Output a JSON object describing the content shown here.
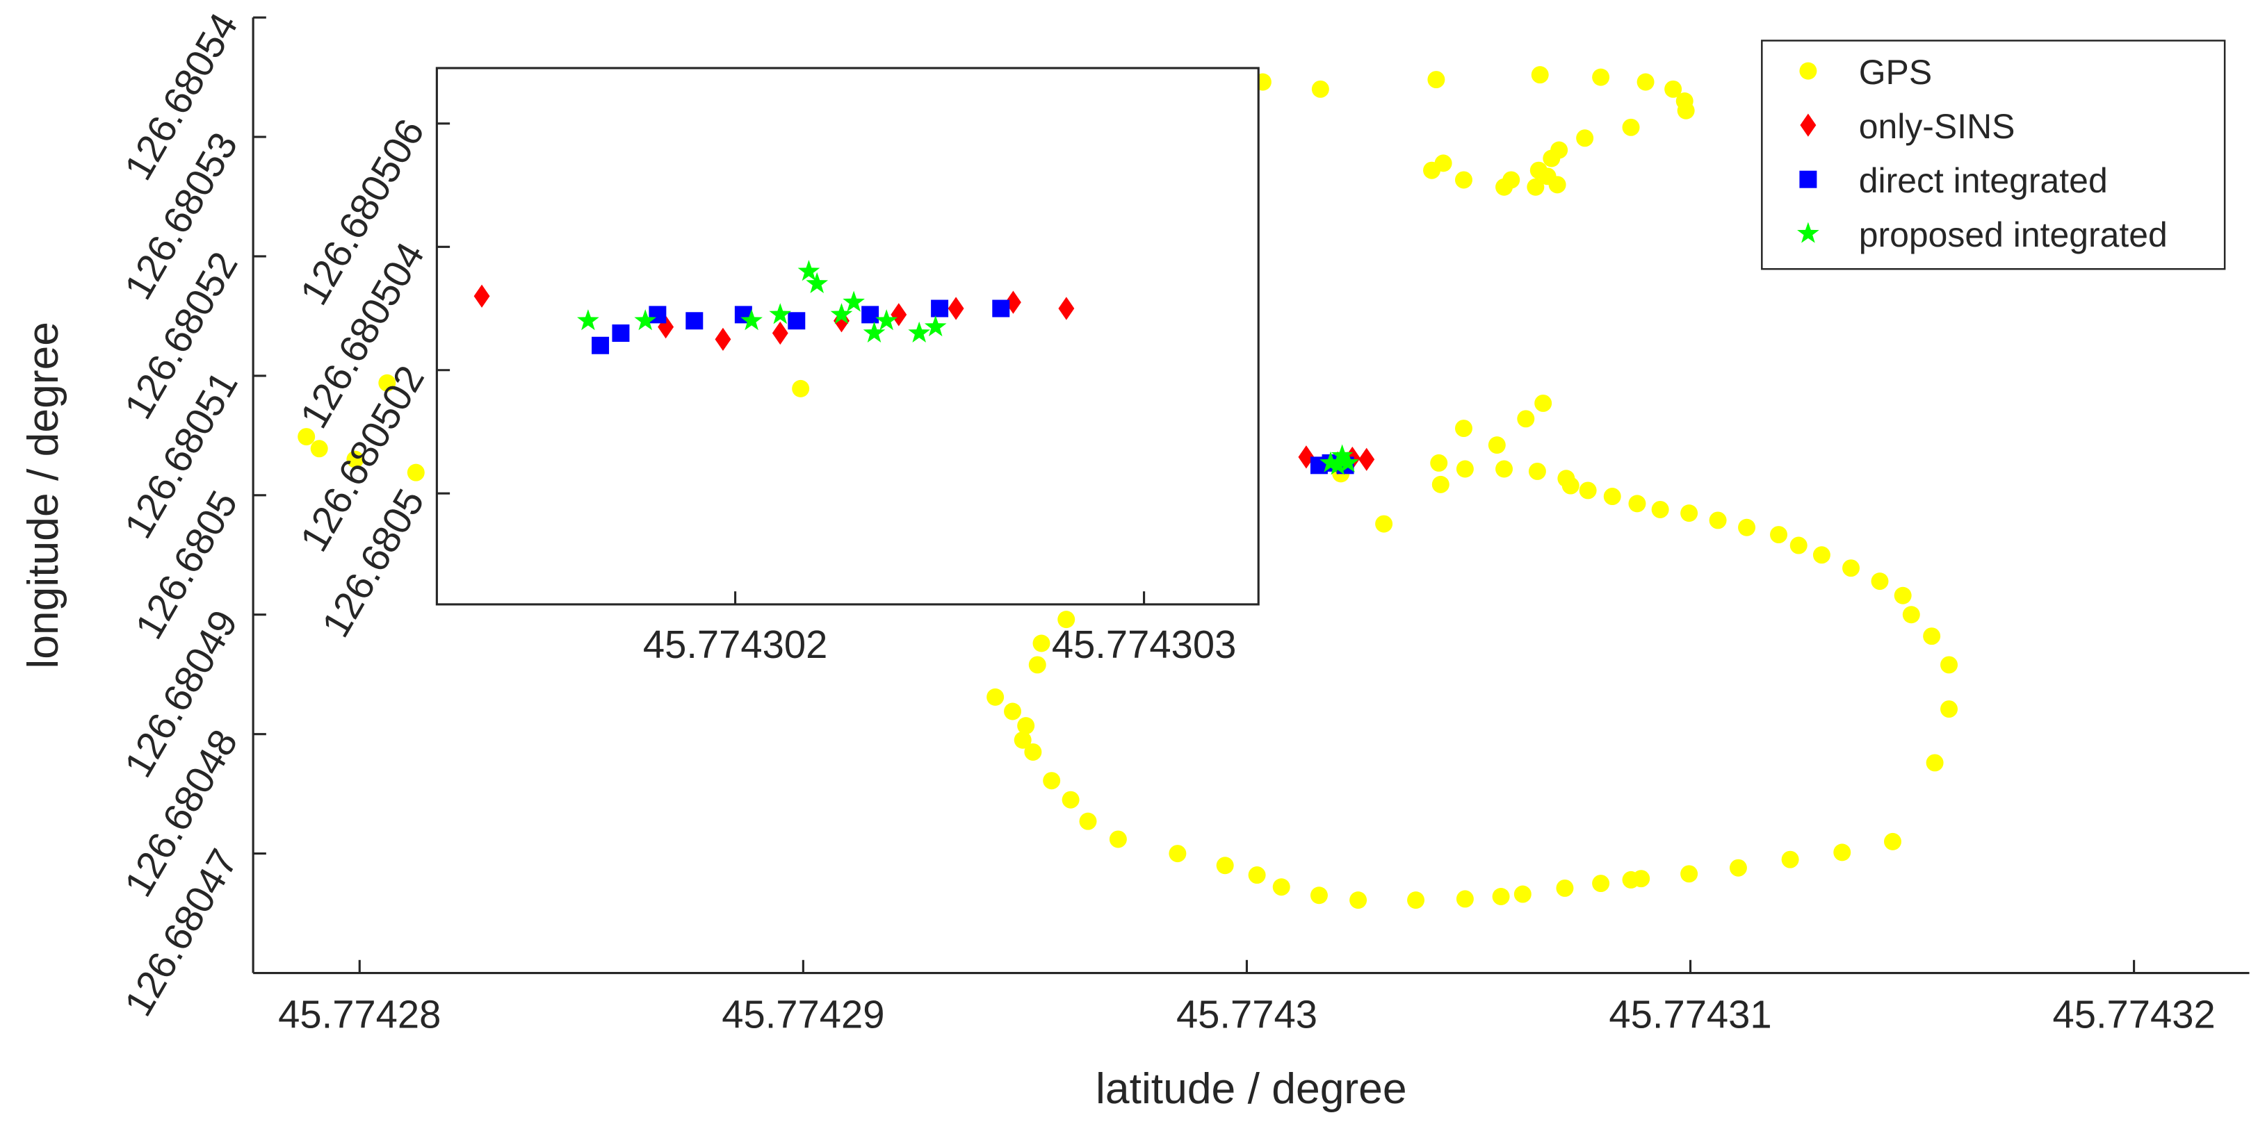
{
  "chart_data": [
    {
      "type": "scatter",
      "xlabel": "latitude / degree",
      "ylabel": "longitude / degree",
      "xlim": [
        45.7742776,
        45.7743226
      ],
      "ylim": [
        126.68046,
        126.68054
      ],
      "xticks": [
        45.77428,
        45.77429,
        45.7743,
        45.77431,
        45.77432
      ],
      "yticks": [
        126.68047,
        126.68048,
        126.68049,
        126.6805,
        126.68051,
        126.68052,
        126.68053,
        126.68054
      ],
      "legend": "upper right",
      "series": [
        {
          "name": "GPS",
          "color": "#ffff00",
          "marker": "circle",
          "x": [
            45.77430036,
            45.77430166,
            45.77430427,
            45.77430661,
            45.77430798,
            45.77430899,
            45.77430961,
            45.77430987,
            45.7743099,
            45.77430866,
            45.77430762,
            45.77430704,
            45.77430687,
            45.77430658,
            45.774307,
            45.77430651,
            45.77430596,
            45.7743058,
            45.77430489,
            45.77430443,
            45.77430417,
            45.77430678,
            45.7742788,
            45.77427909,
            45.7742799,
            45.77428127,
            45.77428062,
            45.77429593,
            45.77429537,
            45.77429528,
            45.77429433,
            45.77429472,
            45.77429502,
            45.77429495,
            45.77429518,
            45.7742956,
            45.77429603,
            45.77429642,
            45.7742971,
            45.77429844,
            45.77429951,
            45.77430023,
            45.77430078,
            45.77430163,
            45.77430251,
            45.77430381,
            45.77430492,
            45.77430573,
            45.77430622,
            45.77430717,
            45.77430798,
            45.77430866,
            45.77430889,
            45.77430997,
            45.77431108,
            45.77431225,
            45.77431342,
            45.77431456,
            45.77431551,
            45.77431583,
            45.77431583,
            45.77431544,
            45.77431498,
            45.77431479,
            45.77431427,
            45.77431362,
            45.77431296,
            45.77431244,
            45.77431199,
            45.77431127,
            45.77431062,
            45.77430997,
            45.77430932,
            45.7743088,
            45.77430824,
            45.77430769,
            45.7743073,
            45.7743072,
            45.77430655,
            45.7743058,
            45.77430492,
            45.77430433,
            45.77430437,
            45.77430489,
            45.77430564,
            45.77430629,
            45.77430668,
            45.77430309,
            45.77430212
          ],
          "values": [
            126.6805346,
            126.680534,
            126.6805348,
            126.6805352,
            126.680535,
            126.6805346,
            126.680534,
            126.680533,
            126.6805322,
            126.6805308,
            126.6805299,
            126.6805289,
            126.6805282,
            126.6805272,
            126.680526,
            126.6805258,
            126.6805264,
            126.6805258,
            126.6805264,
            126.6805278,
            126.6805272,
            126.6805267,
            126.6805049,
            126.6805039,
            126.680503,
            126.6805019,
            126.6805094,
            126.6804896,
            126.6804876,
            126.6804858,
            126.6804831,
            126.6804819,
            126.6804807,
            126.6804795,
            126.6804785,
            126.6804761,
            126.6804745,
            126.6804727,
            126.6804712,
            126.68047,
            126.680469,
            126.6804682,
            126.6804672,
            126.6804665,
            126.6804661,
            126.6804661,
            126.6804662,
            126.6804664,
            126.6804666,
            126.6804671,
            126.6804675,
            126.6804678,
            126.6804679,
            126.6804683,
            126.6804688,
            126.6804695,
            126.6804701,
            126.680471,
            126.6804776,
            126.6804821,
            126.6804858,
            126.6804882,
            126.68049,
            126.6804916,
            126.6804928,
            126.6804939,
            126.680495,
            126.6804958,
            126.6804967,
            126.6804973,
            126.6804979,
            126.6804985,
            126.6804988,
            126.6804993,
            126.6804999,
            126.6805004,
            126.6805008,
            126.6805014,
            126.680502,
            126.6805022,
            126.6805022,
            126.6805027,
            126.6805009,
            126.6805056,
            126.6805042,
            126.6805064,
            126.6805077,
            126.6804976,
            126.6805018
          ]
        },
        {
          "name": "only-SINS",
          "color": "#ff0000",
          "marker": "diamond",
          "x": [
            45.77430134,
            45.7743027,
            45.77430205,
            45.77430238
          ],
          "values": [
            126.6805032,
            126.680503,
            126.6805027,
            126.6805031
          ]
        },
        {
          "name": "direct integrated",
          "color": "#0000ff",
          "marker": "square",
          "x": [
            45.77430163,
            45.77430222,
            45.77430189
          ],
          "values": [
            126.6805025,
            126.6805025,
            126.6805027
          ]
        },
        {
          "name": "proposed integrated",
          "color": "#00ff00",
          "marker": "star",
          "x": [
            45.77430189,
            45.77430215,
            45.77430228,
            45.77430205
          ],
          "values": [
            126.6805027,
            126.6805033,
            126.6805027,
            126.6805025
          ]
        }
      ]
    },
    {
      "type": "scatter",
      "xlim": [
        45.77430127,
        45.77430328
      ],
      "ylim": [
        126.6804982,
        126.6805069
      ],
      "xticks": [
        45.774302,
        45.774303
      ],
      "yticks": [
        126.6805,
        126.680502,
        126.680504,
        126.680506
      ],
      "series": [
        {
          "color": "#ffff00",
          "marker": "circle",
          "x": [
            45.77430216
          ],
          "values": [
            126.6805017
          ]
        },
        {
          "color": "#ff0000",
          "marker": "diamond",
          "x": [
            45.77430138,
            45.77430183,
            45.77430197,
            45.77430211,
            45.77430226,
            45.7743024,
            45.77430254,
            45.77430268,
            45.77430281
          ],
          "values": [
            126.6805032,
            126.6805027,
            126.6805025,
            126.6805026,
            126.6805028,
            126.6805029,
            126.680503,
            126.6805031,
            126.680503
          ]
        },
        {
          "color": "#0000ff",
          "marker": "square",
          "x": [
            45.77430167,
            45.77430172,
            45.77430181,
            45.7743019,
            45.77430202,
            45.77430215,
            45.77430233,
            45.7743025,
            45.77430265
          ],
          "values": [
            126.6805024,
            126.6805026,
            126.6805029,
            126.6805028,
            126.6805029,
            126.6805028,
            126.6805029,
            126.680503,
            126.680503
          ]
        },
        {
          "color": "#00ff00",
          "marker": "star",
          "x": [
            45.77430164,
            45.77430178,
            45.77430204,
            45.77430218,
            45.7743022,
            45.77430229,
            45.77430234,
            45.77430237,
            45.77430245,
            45.77430249,
            45.77430211,
            45.77430226
          ],
          "values": [
            126.6805028,
            126.6805028,
            126.6805028,
            126.6805036,
            126.6805034,
            126.6805031,
            126.6805026,
            126.6805028,
            126.6805026,
            126.6805027,
            126.6805029,
            126.6805029
          ]
        }
      ]
    }
  ]
}
